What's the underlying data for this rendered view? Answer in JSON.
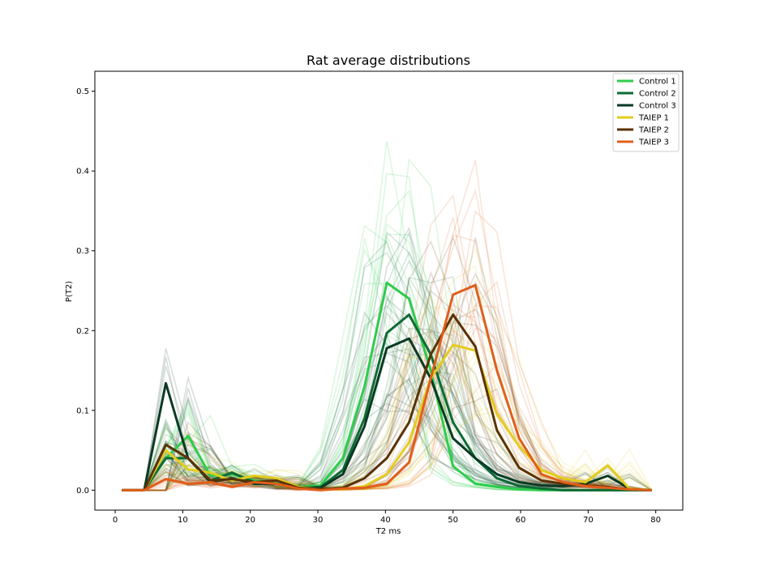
{
  "chart_data": {
    "type": "line",
    "title": "Rat average distributions",
    "xlabel": "T2 ms",
    "ylabel": "P(T2)",
    "xlim": [
      -3,
      84
    ],
    "ylim": [
      -0.025,
      0.525
    ],
    "xticks": [
      "0",
      "10",
      "20",
      "30",
      "40",
      "50",
      "60",
      "70",
      "80"
    ],
    "yticks": [
      "0.0",
      "0.1",
      "0.2",
      "0.3",
      "0.4",
      "0.5"
    ],
    "grid": false,
    "legend_position": "top-right",
    "x": [
      1,
      4.3,
      7.5,
      10.8,
      14.1,
      17.3,
      20.6,
      23.9,
      27.1,
      30.4,
      33.7,
      36.9,
      40.2,
      43.5,
      46.7,
      50,
      53.3,
      56.5,
      59.8,
      63.1,
      66.3,
      69.6,
      72.9,
      76.1,
      79.4
    ],
    "series": [
      {
        "name": "Control 1",
        "color": "#2ecc4a",
        "values": [
          0,
          0,
          0.04,
          0.068,
          0.018,
          0.02,
          0.012,
          0.01,
          0.004,
          0.006,
          0.04,
          0.13,
          0.26,
          0.24,
          0.15,
          0.03,
          0.008,
          0.004,
          0.001,
          0,
          0,
          0,
          0,
          0,
          0
        ]
      },
      {
        "name": "Control 2",
        "color": "#0e6b35",
        "values": [
          0,
          0,
          0.04,
          0.04,
          0.012,
          0.022,
          0.01,
          0.012,
          0.003,
          0.004,
          0.025,
          0.09,
          0.197,
          0.22,
          0.17,
          0.085,
          0.04,
          0.015,
          0.005,
          0.002,
          0,
          0,
          0,
          0,
          0
        ]
      },
      {
        "name": "Control 3",
        "color": "#0a3a24",
        "values": [
          0,
          0,
          0.134,
          0.04,
          0.01,
          0.015,
          0.008,
          0.008,
          0.002,
          0.003,
          0.02,
          0.08,
          0.178,
          0.19,
          0.14,
          0.065,
          0.04,
          0.02,
          0.01,
          0.006,
          0.005,
          0.008,
          0.018,
          0.002,
          0
        ]
      },
      {
        "name": "TAIEP 1",
        "color": "#e3cc1f",
        "values": [
          0,
          0,
          0.05,
          0.026,
          0.022,
          0.012,
          0.018,
          0.015,
          0.004,
          0.001,
          0.001,
          0.005,
          0.02,
          0.06,
          0.14,
          0.182,
          0.175,
          0.095,
          0.055,
          0.025,
          0.015,
          0.01,
          0.031,
          0.002,
          0
        ]
      },
      {
        "name": "TAIEP 2",
        "color": "#5a3206",
        "values": [
          0,
          0,
          0.057,
          0.04,
          0.012,
          0.014,
          0.01,
          0.012,
          0.003,
          0.001,
          0.003,
          0.015,
          0.04,
          0.085,
          0.17,
          0.22,
          0.18,
          0.075,
          0.028,
          0.012,
          0.008,
          0.006,
          0.004,
          0.001,
          0
        ]
      },
      {
        "name": "TAIEP 3",
        "color": "#e05e1b",
        "values": [
          0,
          0,
          0.014,
          0.008,
          0.01,
          0.004,
          0.01,
          0.008,
          0.002,
          0,
          0.002,
          0.003,
          0.008,
          0.035,
          0.14,
          0.245,
          0.257,
          0.15,
          0.065,
          0.02,
          0.01,
          0.005,
          0.003,
          0.001,
          0
        ]
      }
    ]
  }
}
